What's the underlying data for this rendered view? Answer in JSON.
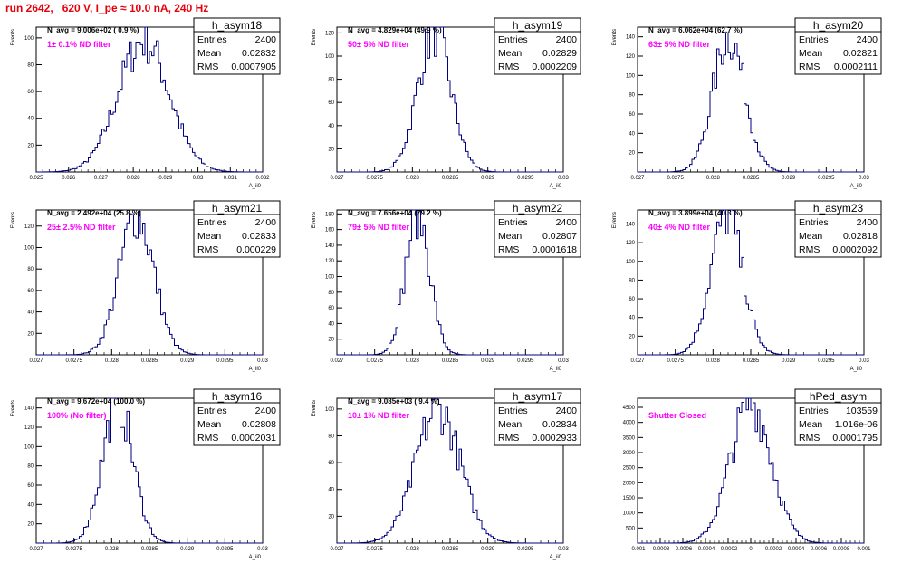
{
  "page_title": "run 2642,   620 V, I_pe ≈ 10.0 nA, 240 Hz",
  "colors": {
    "histogram": "#000080",
    "annotation": "#ff00ff",
    "title": "#e8000b"
  },
  "chart_data": [
    {
      "type": "histogram",
      "name": "h_asym18",
      "entries": "2400",
      "mean": "0.02832",
      "rms": "0.0007905",
      "navg": "N_avg = 9.006e+02 ( 0.9 %)",
      "filter": "1± 0.1% ND filter",
      "xlabel": "A_ii0",
      "ylabel": "Events",
      "xlim": [
        0.025,
        0.032
      ],
      "ylim": [
        0,
        108
      ],
      "center": 0.02832,
      "sigma": 0.0007905,
      "peak": 98,
      "xticks": [
        0.025,
        0.026,
        0.027,
        0.028,
        0.029,
        0.03,
        0.031,
        0.032
      ],
      "xtick_labels": [
        "0.025",
        "0.026",
        "0.027",
        "0.028",
        "0.029",
        "0.03",
        "0.031",
        "0.032"
      ],
      "yticks": [
        20,
        40,
        60,
        80,
        100
      ],
      "ytick_labels": [
        "20",
        "40",
        "60",
        "80",
        "100"
      ]
    },
    {
      "type": "histogram",
      "name": "h_asym19",
      "entries": "2400",
      "mean": "0.02829",
      "rms": "0.0002209",
      "navg": "N_avg = 4.829e+04 (49.9 %)",
      "filter": "50± 5% ND filter",
      "xlabel": "A_ii0",
      "ylabel": "Events",
      "xlim": [
        0.027,
        0.03
      ],
      "ylim": [
        0,
        125
      ],
      "center": 0.02829,
      "sigma": 0.0002209,
      "peak": 120,
      "xticks": [
        0.027,
        0.0275,
        0.028,
        0.0285,
        0.029,
        0.0295,
        0.03
      ],
      "xtick_labels": [
        "0.027",
        "0.0275",
        "0.028",
        "0.0285",
        "0.029",
        "0.0295",
        "0.03"
      ],
      "yticks": [
        20,
        40,
        60,
        80,
        100,
        120
      ],
      "ytick_labels": [
        "20",
        "40",
        "60",
        "80",
        "100",
        "120"
      ]
    },
    {
      "type": "histogram",
      "name": "h_asym20",
      "entries": "2400",
      "mean": "0.02821",
      "rms": "0.0002111",
      "navg": "N_avg = 6.062e+04 (62.7 %)",
      "filter": "63± 5% ND filter",
      "xlabel": "A_ii0",
      "ylabel": "Events",
      "xlim": [
        0.027,
        0.03
      ],
      "ylim": [
        0,
        150
      ],
      "center": 0.02821,
      "sigma": 0.0002111,
      "peak": 140,
      "xticks": [
        0.027,
        0.0275,
        0.028,
        0.0285,
        0.029,
        0.0295,
        0.03
      ],
      "xtick_labels": [
        "0.027",
        "0.0275",
        "0.028",
        "0.0285",
        "0.029",
        "0.0295",
        "0.03"
      ],
      "yticks": [
        20,
        40,
        60,
        80,
        100,
        120,
        140
      ],
      "ytick_labels": [
        "20",
        "40",
        "60",
        "80",
        "100",
        "120",
        "140"
      ]
    },
    {
      "type": "histogram",
      "name": "h_asym21",
      "entries": "2400",
      "mean": "0.02833",
      "rms": "0.000229",
      "navg": "N_avg = 2.492e+04 (25.8 %)",
      "filter": "25± 2.5% ND filter",
      "xlabel": "A_ii0",
      "ylabel": "Events",
      "xlim": [
        0.027,
        0.03
      ],
      "ylim": [
        0,
        135
      ],
      "center": 0.02833,
      "sigma": 0.000229,
      "peak": 130,
      "xticks": [
        0.027,
        0.0275,
        0.028,
        0.0285,
        0.029,
        0.0295,
        0.03
      ],
      "xtick_labels": [
        "0.027",
        "0.0275",
        "0.028",
        "0.0285",
        "0.029",
        "0.0295",
        "0.03"
      ],
      "yticks": [
        20,
        40,
        60,
        80,
        100,
        120
      ],
      "ytick_labels": [
        "20",
        "40",
        "60",
        "80",
        "100",
        "120"
      ]
    },
    {
      "type": "histogram",
      "name": "h_asym22",
      "entries": "2400",
      "mean": "0.02807",
      "rms": "0.0001618",
      "navg": "N_avg = 7.656e+04 (79.2 %)",
      "filter": "79± 5% ND filter",
      "xlabel": "A_ii0",
      "ylabel": "Events",
      "xlim": [
        0.027,
        0.03
      ],
      "ylim": [
        0,
        185
      ],
      "center": 0.02807,
      "sigma": 0.0001618,
      "peak": 180,
      "xticks": [
        0.027,
        0.0275,
        0.028,
        0.0285,
        0.029,
        0.0295,
        0.03
      ],
      "xtick_labels": [
        "0.027",
        "0.0275",
        "0.028",
        "0.0285",
        "0.029",
        "0.0295",
        "0.03"
      ],
      "yticks": [
        20,
        40,
        60,
        80,
        100,
        120,
        140,
        160,
        180
      ],
      "ytick_labels": [
        "20",
        "40",
        "60",
        "80",
        "100",
        "120",
        "140",
        "160",
        "180"
      ]
    },
    {
      "type": "histogram",
      "name": "h_asym23",
      "entries": "2400",
      "mean": "0.02818",
      "rms": "0.0002092",
      "navg": "N_avg = 3.899e+04 (40.3 %)",
      "filter": "40± 4% ND filter",
      "xlabel": "A_ii0",
      "ylabel": "Events",
      "xlim": [
        0.027,
        0.03
      ],
      "ylim": [
        0,
        155
      ],
      "center": 0.02818,
      "sigma": 0.0002092,
      "peak": 150,
      "xticks": [
        0.027,
        0.0275,
        0.028,
        0.0285,
        0.029,
        0.0295,
        0.03
      ],
      "xtick_labels": [
        "0.027",
        "0.0275",
        "0.028",
        "0.0285",
        "0.029",
        "0.0295",
        "0.03"
      ],
      "yticks": [
        20,
        40,
        60,
        80,
        100,
        120,
        140
      ],
      "ytick_labels": [
        "20",
        "40",
        "60",
        "80",
        "100",
        "120",
        "140"
      ]
    },
    {
      "type": "histogram",
      "name": "h_asym16",
      "entries": "2400",
      "mean": "0.02808",
      "rms": "0.0002031",
      "navg": "N_avg = 9.672e+04 (100.0 %)",
      "filter": "100% (No filter)",
      "xlabel": "A_ii0",
      "ylabel": "Events",
      "xlim": [
        0.027,
        0.03
      ],
      "ylim": [
        0,
        150
      ],
      "center": 0.02808,
      "sigma": 0.0002031,
      "peak": 145,
      "xticks": [
        0.027,
        0.0275,
        0.028,
        0.0285,
        0.029,
        0.0295,
        0.03
      ],
      "xtick_labels": [
        "0.027",
        "0.0275",
        "0.028",
        "0.0285",
        "0.029",
        "0.0295",
        "0.03"
      ],
      "yticks": [
        20,
        40,
        60,
        80,
        100,
        120,
        140
      ],
      "ytick_labels": [
        "20",
        "40",
        "60",
        "80",
        "100",
        "120",
        "140"
      ]
    },
    {
      "type": "histogram",
      "name": "h_asym17",
      "entries": "2400",
      "mean": "0.02834",
      "rms": "0.0002933",
      "navg": "N_avg = 9.085e+03 ( 9.4 %)",
      "filter": "10± 1% ND filter",
      "xlabel": "A_ii0",
      "ylabel": "Events",
      "xlim": [
        0.027,
        0.03
      ],
      "ylim": [
        0,
        108
      ],
      "center": 0.02834,
      "sigma": 0.0002933,
      "peak": 100,
      "xticks": [
        0.027,
        0.0275,
        0.028,
        0.0285,
        0.029,
        0.0295,
        0.03
      ],
      "xtick_labels": [
        "0.027",
        "0.0275",
        "0.028",
        "0.0285",
        "0.029",
        "0.0295",
        "0.03"
      ],
      "yticks": [
        20,
        40,
        60,
        80,
        100
      ],
      "ytick_labels": [
        "20",
        "40",
        "60",
        "80",
        "100"
      ]
    },
    {
      "type": "histogram",
      "name": "hPed_asym",
      "entries": "103559",
      "mean": "1.016e-06",
      "rms": "0.0001795",
      "navg": "",
      "filter": "Shutter Closed",
      "xlabel": "",
      "ylabel": "",
      "xlim": [
        -0.001,
        0.001
      ],
      "ylim": [
        0,
        4800
      ],
      "center": 1.016e-06,
      "sigma": 0.0001795,
      "peak": 4650,
      "xticks": [
        -0.001,
        -0.0008,
        -0.0006,
        -0.0004,
        -0.0002,
        0,
        0.0002,
        0.0004,
        0.0006,
        0.0008,
        0.001
      ],
      "xtick_labels": [
        "-0.001",
        "-0.0008",
        "-0.0006",
        "-0.0004",
        "-0.0002",
        "0",
        "0.0002",
        "0.0004",
        "0.0006",
        "0.0008",
        "0.001"
      ],
      "yticks": [
        500,
        1000,
        1500,
        2000,
        2500,
        3000,
        3500,
        4000,
        4500
      ],
      "ytick_labels": [
        "500",
        "1000",
        "1500",
        "2000",
        "2500",
        "3000",
        "3500",
        "4000",
        "4500"
      ]
    }
  ]
}
